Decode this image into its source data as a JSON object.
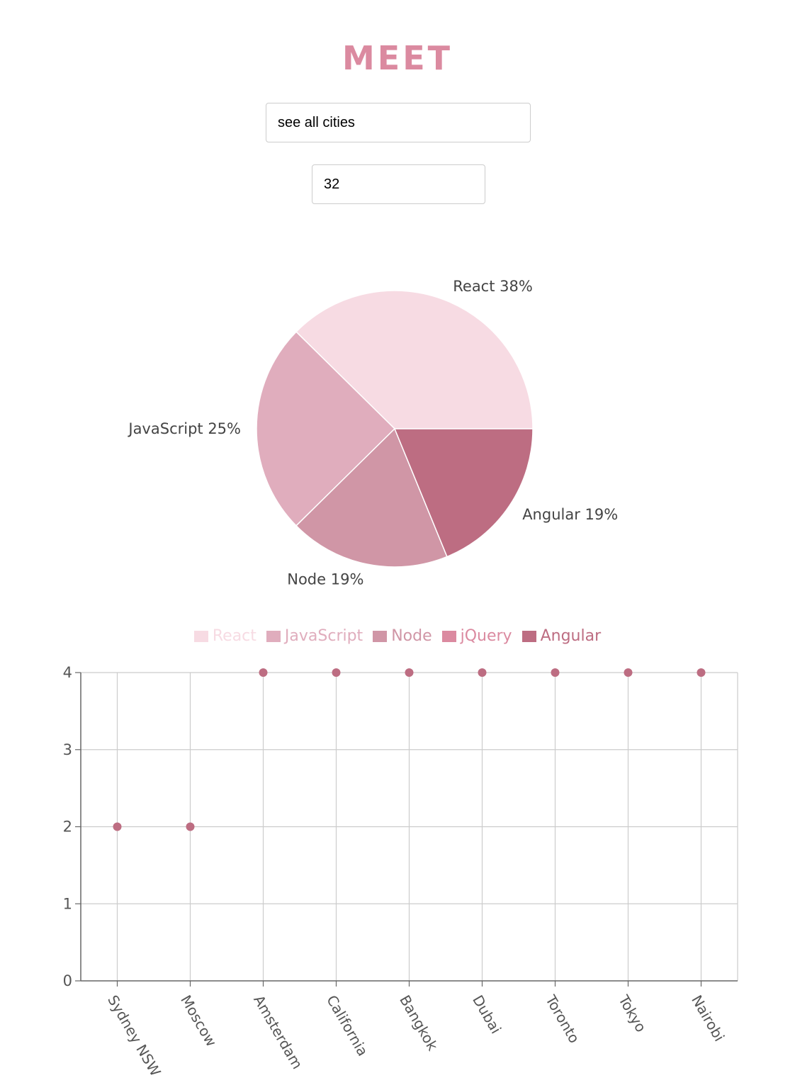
{
  "header": {
    "title": "MEET",
    "title_color": "#db8aa0"
  },
  "search": {
    "city_value": "see all cities",
    "event_count_value": "32"
  },
  "genre_chart": {
    "type": "pie",
    "categories": [
      "React",
      "JavaScript",
      "Node",
      "jQuery",
      "Angular"
    ],
    "values": [
      38,
      25,
      19,
      0,
      19
    ],
    "labels": [
      "React 38%",
      "JavaScript 25%",
      "Node 19%",
      "",
      "Angular 19%"
    ],
    "colors": [
      "#f7dbe3",
      "#e0adbd",
      "#d096a6",
      "#db8aa0",
      "#bd6d82"
    ],
    "legend_position": "bottom"
  },
  "chart_data": {
    "type": "scatter",
    "categories": [
      "Sydney NSW",
      "Moscow",
      "Amsterdam",
      "California",
      "Bangkok",
      "Dubai",
      "Toronto",
      "Tokyo",
      "Nairobi"
    ],
    "values": [
      2,
      2,
      4,
      4,
      4,
      4,
      4,
      4,
      4
    ],
    "y_ticks": [
      "0",
      "1",
      "2",
      "3",
      "4"
    ],
    "ylim": [
      0,
      4
    ],
    "grid": true,
    "point_color": "#bd6d82",
    "grid_color": "#cccccc"
  }
}
